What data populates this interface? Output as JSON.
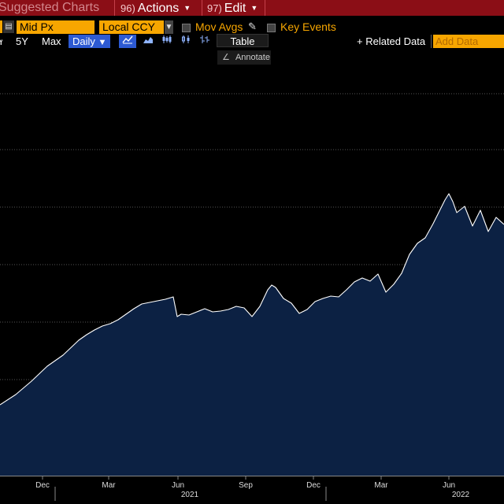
{
  "toolbar": {
    "suggested_charts": "Suggested Charts",
    "actions_num": "96)",
    "actions_label": "Actions",
    "edit_num": "97)",
    "edit_label": "Edit"
  },
  "controls": {
    "field_value": "Mid Px",
    "currency_value": "Local CCY",
    "mov_avgs_label": "Mov Avgs",
    "key_events_label": "Key Events",
    "range_partial": "Y",
    "range_5y": "5Y",
    "range_max": "Max",
    "frequency": "Daily",
    "table_label": "Table",
    "related_data_label": "+ Related Data",
    "add_data_placeholder": "Add Data",
    "annotate_label": "Annotate"
  },
  "colors": {
    "toolbar_bg": "#8b0e16",
    "accent_orange": "#f7a600",
    "selected_blue": "#2d5ad2",
    "series_line": "#ffffff",
    "series_fill": "#0c2143",
    "grid": "#555555"
  },
  "icons": {
    "field_menu": "calendar-icon",
    "mov_avgs_edit": "pencil-icon",
    "line_chart": "line-chart-icon",
    "candlestick": "candlestick-icon",
    "ohlc": "ohlc-bar-icon",
    "annotate": "pen-icon"
  },
  "chart_data": {
    "type": "area",
    "x_tick_labels": [
      "Dec",
      "Mar",
      "Jun",
      "Sep",
      "Dec",
      "Mar",
      "Jun"
    ],
    "year_labels": [
      "2021",
      "2022"
    ],
    "grid": true,
    "x": [
      0,
      20,
      40,
      60,
      80,
      100,
      110,
      120,
      130,
      140,
      150,
      160,
      170,
      180,
      190,
      200,
      210,
      220,
      225,
      230,
      240,
      250,
      260,
      270,
      280,
      290,
      300,
      310,
      320,
      330,
      340,
      345,
      350,
      360,
      370,
      380,
      390,
      400,
      410,
      420,
      430,
      440,
      450,
      460,
      470,
      480,
      490,
      500,
      510,
      520,
      530,
      540,
      550,
      560,
      565,
      570,
      575,
      580,
      590,
      600,
      610,
      620,
      630,
      640
    ],
    "values": [
      0.0,
      0.13,
      0.3,
      0.49,
      0.63,
      0.82,
      0.89,
      0.95,
      1.0,
      1.03,
      1.08,
      1.15,
      1.22,
      1.28,
      1.3,
      1.32,
      1.34,
      1.37,
      1.12,
      1.15,
      1.14,
      1.18,
      1.22,
      1.18,
      1.19,
      1.21,
      1.25,
      1.23,
      1.12,
      1.25,
      1.46,
      1.52,
      1.49,
      1.35,
      1.29,
      1.16,
      1.21,
      1.31,
      1.35,
      1.38,
      1.37,
      1.46,
      1.56,
      1.61,
      1.57,
      1.66,
      1.43,
      1.53,
      1.67,
      1.91,
      2.05,
      2.12,
      2.3,
      2.5,
      2.6,
      2.68,
      2.58,
      2.44,
      2.52,
      2.27,
      2.47,
      2.2,
      2.38,
      2.29
    ]
  }
}
